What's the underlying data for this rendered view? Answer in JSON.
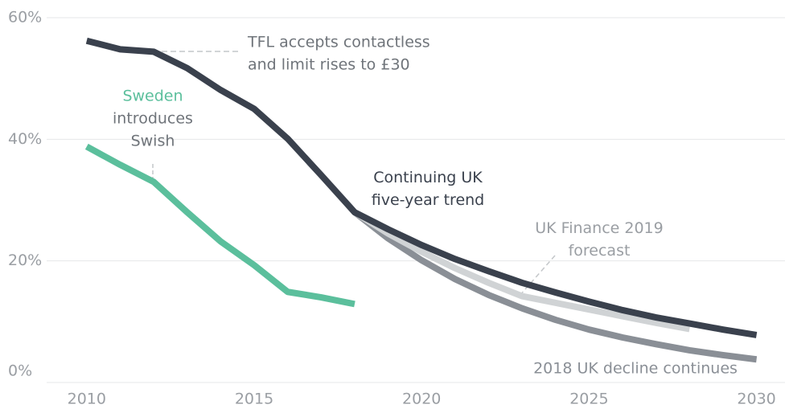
{
  "chart_data": {
    "type": "line",
    "x": [
      2010,
      2011,
      2012,
      2013,
      2014,
      2015,
      2016,
      2017,
      2018,
      2019,
      2020,
      2021,
      2022,
      2023,
      2024,
      2025,
      2026,
      2027,
      2028,
      2029,
      2030
    ],
    "series": [
      {
        "name": "2018 UK decline continues",
        "color": "#8a8f96",
        "values": [
          null,
          null,
          null,
          null,
          null,
          null,
          null,
          null,
          28.0,
          23.7,
          20.1,
          17.0,
          14.4,
          12.2,
          10.3,
          8.7,
          7.4,
          6.3,
          5.3,
          4.5,
          3.8
        ]
      },
      {
        "name": "UK Finance 2019 forecast",
        "color": "#d0d3d5",
        "values": [
          null,
          null,
          null,
          null,
          null,
          null,
          null,
          null,
          28.0,
          24.5,
          21.5,
          18.8,
          16.4,
          14.2,
          13.1,
          12.0,
          10.9,
          9.8,
          8.8,
          null,
          null
        ]
      },
      {
        "name": "Continuing UK five-year trend",
        "color": "#3a414d",
        "values": [
          56.2,
          54.8,
          54.4,
          51.7,
          48.1,
          45.0,
          40.1,
          34.1,
          28.0,
          25.2,
          22.6,
          20.3,
          18.3,
          16.4,
          14.8,
          13.3,
          11.9,
          10.7,
          9.7,
          8.7,
          7.8
        ]
      },
      {
        "name": "Sweden",
        "color": "#5bbf9c",
        "values": [
          38.8,
          35.8,
          33.0,
          28.0,
          23.2,
          19.3,
          14.9,
          14.0,
          12.9,
          null,
          null,
          null,
          null,
          null,
          null,
          null,
          null,
          null,
          null,
          null,
          null
        ]
      }
    ],
    "annotations": [
      {
        "lines": [
          "TFL accepts contactless",
          "and limit rises to £30"
        ]
      },
      {
        "lines": [
          "introduces",
          "Swish"
        ]
      }
    ],
    "xlim": [
      2008.9,
      2030.85
    ],
    "xticks": [
      2010,
      2015,
      2020,
      2025,
      2030
    ],
    "ylim": [
      0,
      60
    ],
    "yticks": [
      {
        "value": 0,
        "label": "0%"
      },
      {
        "value": 20,
        "label": "20%"
      },
      {
        "value": 40,
        "label": "40%"
      },
      {
        "value": 60,
        "label": "60%"
      }
    ],
    "grid": true
  }
}
